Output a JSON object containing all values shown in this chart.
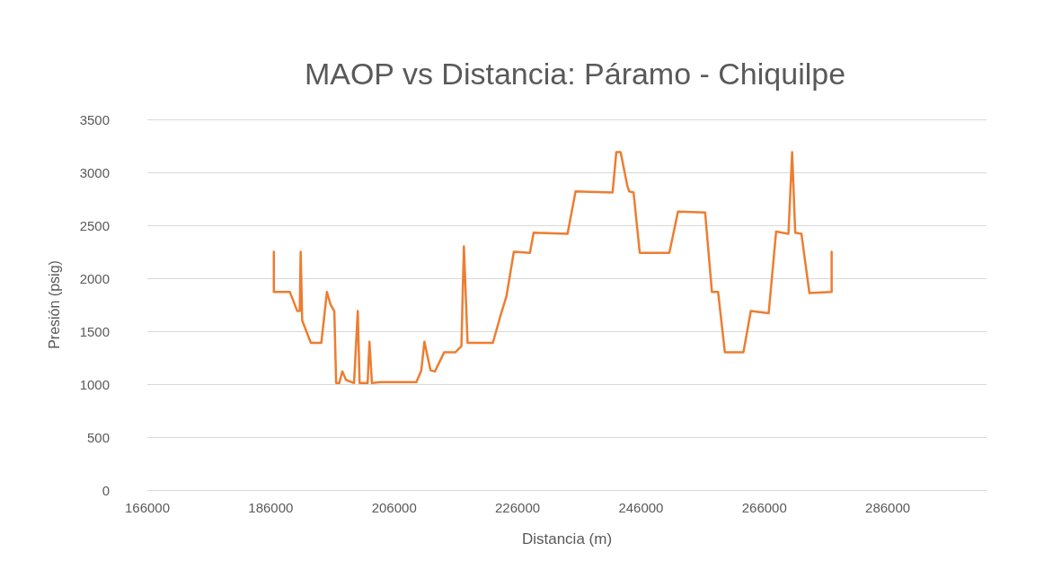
{
  "chart_data": {
    "type": "line",
    "title": "MAOP vs Distancia: Páramo - Chiquilpe",
    "xlabel": "Distancia (m)",
    "ylabel": "Presión (psig)",
    "series": [
      {
        "color": "#ed7d31",
        "x": [
          186500,
          186500,
          189100,
          190300,
          190700,
          190850,
          191100,
          192500,
          194200,
          195100,
          195700,
          196300,
          196600,
          197100,
          197600,
          198200,
          199500,
          200100,
          200400,
          201700,
          202000,
          202400,
          203700,
          209600,
          210400,
          210900,
          211900,
          212600,
          214100,
          215900,
          216900,
          217300,
          217900,
          222000,
          223200,
          224200,
          225400,
          228000,
          228600,
          234100,
          235400,
          241400,
          242000,
          242700,
          243800,
          244100,
          244800,
          245800,
          250600,
          252000,
          256400,
          257500,
          258500,
          259600,
          262600,
          263800,
          266700,
          267900,
          269900,
          270500,
          271000,
          272000,
          273300,
          276900,
          276900
        ],
        "values": [
          2250,
          1870,
          1870,
          1690,
          1690,
          2250,
          1600,
          1390,
          1390,
          1870,
          1750,
          1690,
          1010,
          1010,
          1120,
          1040,
          1010,
          1690,
          1010,
          1010,
          1400,
          1010,
          1020,
          1020,
          1130,
          1400,
          1130,
          1120,
          1300,
          1300,
          1360,
          2300,
          1390,
          1390,
          1640,
          1830,
          2250,
          2240,
          2430,
          2420,
          2820,
          2810,
          3190,
          3190,
          2870,
          2820,
          2810,
          2240,
          2240,
          2630,
          2620,
          1870,
          1870,
          1300,
          1300,
          1690,
          1670,
          2440,
          2420,
          3190,
          2430,
          2420,
          1860,
          1870,
          2250
        ]
      }
    ],
    "xlim": [
      166000,
      302000
    ],
    "xticks": [
      166000,
      186000,
      206000,
      226000,
      246000,
      266000,
      286000
    ],
    "ylim": [
      0,
      3500
    ],
    "yticks": [
      0,
      500,
      1000,
      1500,
      2000,
      2500,
      3000,
      3500
    ],
    "grid": "y",
    "marker": "none",
    "line_style": "solid"
  }
}
